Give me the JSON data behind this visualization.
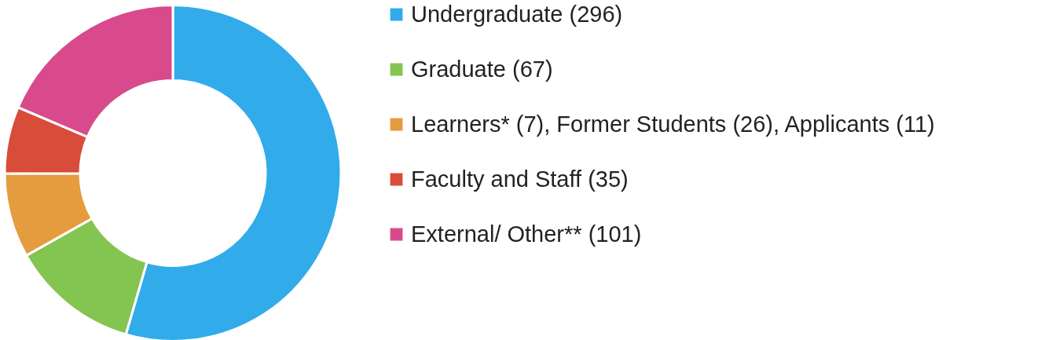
{
  "chart_data": {
    "type": "donut",
    "categories": [
      "Undergraduate (296)",
      "Graduate (67)",
      "Learners* (7), Former Students (26), Applicants (11)",
      "Faculty and Staff (35)",
      "External/ Other** (101)"
    ],
    "values": [
      296,
      67,
      44,
      35,
      101
    ],
    "colors": [
      "#32abeb",
      "#84c450",
      "#e49c3e",
      "#d84c3a",
      "#d84a8c"
    ],
    "legend": "right"
  }
}
